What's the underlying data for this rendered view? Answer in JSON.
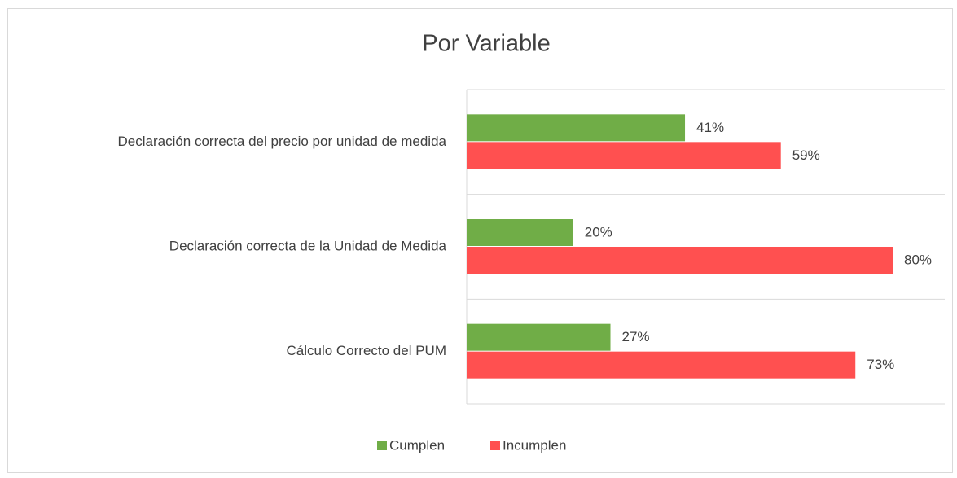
{
  "chart_data": {
    "type": "bar",
    "orientation": "horizontal",
    "title": "Por Variable",
    "categories": [
      "Declaración correcta del precio por unidad de medida",
      "Declaración correcta de la Unidad de Medida",
      "Cálculo Correcto del PUM"
    ],
    "series": [
      {
        "name": "Cumplen",
        "color": "#70ad47",
        "values": [
          41,
          20,
          27
        ],
        "value_labels": [
          "41%",
          "20%",
          "27%"
        ]
      },
      {
        "name": "Incumplen",
        "color": "#ff5050",
        "values": [
          59,
          80,
          73
        ],
        "value_labels": [
          "59%",
          "80%",
          "73%"
        ]
      }
    ],
    "legend": "bottom"
  }
}
